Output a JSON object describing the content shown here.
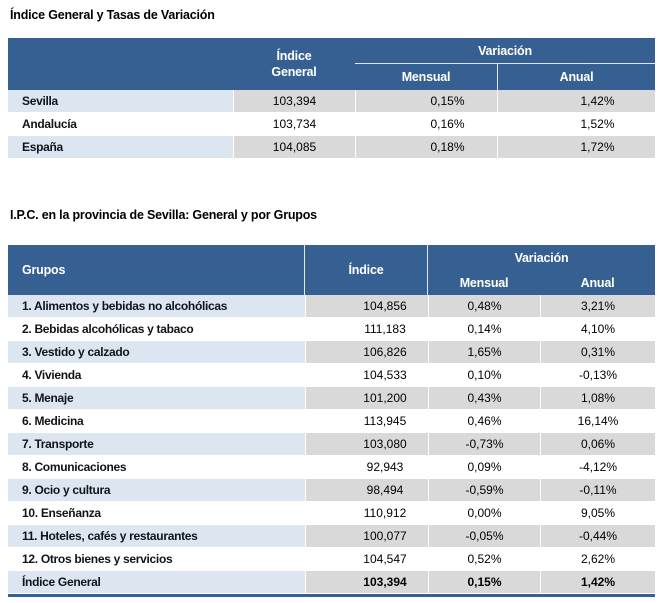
{
  "colors": {
    "header_bg": "#376092",
    "label_alt_bg": "#dce6f1",
    "data_alt_bg": "#d9d9d9",
    "row_white_bg": "#ffffff",
    "header_text": "#ffffff",
    "bottom_rule": "#376092"
  },
  "table1": {
    "title": "Índice General y Tasas de Variación",
    "header": {
      "indice_line1": "Índice",
      "indice_line2": "General",
      "variacion": "Variación",
      "mensual": "Mensual",
      "anual": "Anual"
    },
    "rows": [
      {
        "label": "Sevilla",
        "indice": "103,394",
        "mensual": "0,15%",
        "anual": "1,42%"
      },
      {
        "label": "Andalucía",
        "indice": "103,734",
        "mensual": "0,16%",
        "anual": "1,52%"
      },
      {
        "label": "España",
        "indice": "104,085",
        "mensual": "0,18%",
        "anual": "1,72%"
      }
    ]
  },
  "table2": {
    "title": "I.P.C. en la provincia de Sevilla: General y por Grupos",
    "header": {
      "grupos": "Grupos",
      "indice": "Índice",
      "variacion": "Variación",
      "mensual": "Mensual",
      "anual": "Anual"
    },
    "rows": [
      {
        "label": "1. Alimentos y bebidas no alcohólicas",
        "indice": "104,856",
        "mensual": "0,48%",
        "anual": "3,21%"
      },
      {
        "label": "2. Bebidas alcohólicas y tabaco",
        "indice": "111,183",
        "mensual": "0,14%",
        "anual": "4,10%"
      },
      {
        "label": "3. Vestido y calzado",
        "indice": "106,826",
        "mensual": "1,65%",
        "anual": "0,31%"
      },
      {
        "label": "4. Vivienda",
        "indice": "104,533",
        "mensual": "0,10%",
        "anual": "-0,13%"
      },
      {
        "label": "5. Menaje",
        "indice": "101,200",
        "mensual": "0,43%",
        "anual": "1,08%"
      },
      {
        "label": "6. Medicina",
        "indice": "113,945",
        "mensual": "0,46%",
        "anual": "16,14%"
      },
      {
        "label": "7. Transporte",
        "indice": "103,080",
        "mensual": "-0,73%",
        "anual": "0,06%"
      },
      {
        "label": "8. Comunicaciones",
        "indice": "92,943",
        "mensual": "0,09%",
        "anual": "-4,12%"
      },
      {
        "label": "9. Ocio y cultura",
        "indice": "98,494",
        "mensual": "-0,59%",
        "anual": "-0,11%"
      },
      {
        "label": "10. Enseñanza",
        "indice": "110,912",
        "mensual": "0,00%",
        "anual": "9,05%"
      },
      {
        "label": "11. Hoteles, cafés y restaurantes",
        "indice": "100,077",
        "mensual": "-0,05%",
        "anual": "-0,44%"
      },
      {
        "label": "12. Otros bienes y servicios",
        "indice": "104,547",
        "mensual": "0,52%",
        "anual": "2,62%"
      },
      {
        "label": "Índice General",
        "indice": "103,394",
        "mensual": "0,15%",
        "anual": "1,42%",
        "bold": true
      }
    ]
  }
}
